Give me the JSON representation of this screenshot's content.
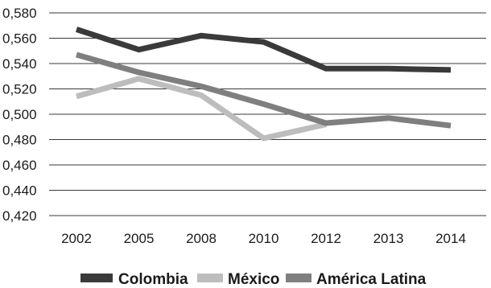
{
  "chart_data": {
    "type": "line",
    "categories": [
      "2002",
      "2005",
      "2008",
      "2010",
      "2012",
      "2013",
      "2014"
    ],
    "series": [
      {
        "name": "Colombia",
        "color": "#3a3a3a",
        "values": [
          0.567,
          0.551,
          0.562,
          0.557,
          0.536,
          0.536,
          0.535
        ]
      },
      {
        "name": "México",
        "color": "#bdbdbd",
        "values": [
          0.514,
          0.528,
          0.515,
          0.481,
          0.492,
          null,
          null
        ]
      },
      {
        "name": "América Latina",
        "color": "#7f7f7f",
        "values": [
          0.547,
          0.533,
          0.522,
          0.508,
          0.493,
          0.497,
          0.491
        ]
      }
    ],
    "ylim": [
      0.42,
      0.58
    ],
    "yticks": [
      "0,420",
      "0,440",
      "0,460",
      "0,480",
      "0,500",
      "0,520",
      "0,540",
      "0,560",
      "0,580"
    ],
    "ytick_values": [
      0.42,
      0.44,
      0.46,
      0.48,
      0.5,
      0.52,
      0.54,
      0.56,
      0.58
    ],
    "grid": true,
    "legend_position": "bottom",
    "title": "",
    "xlabel": "",
    "ylabel": ""
  }
}
